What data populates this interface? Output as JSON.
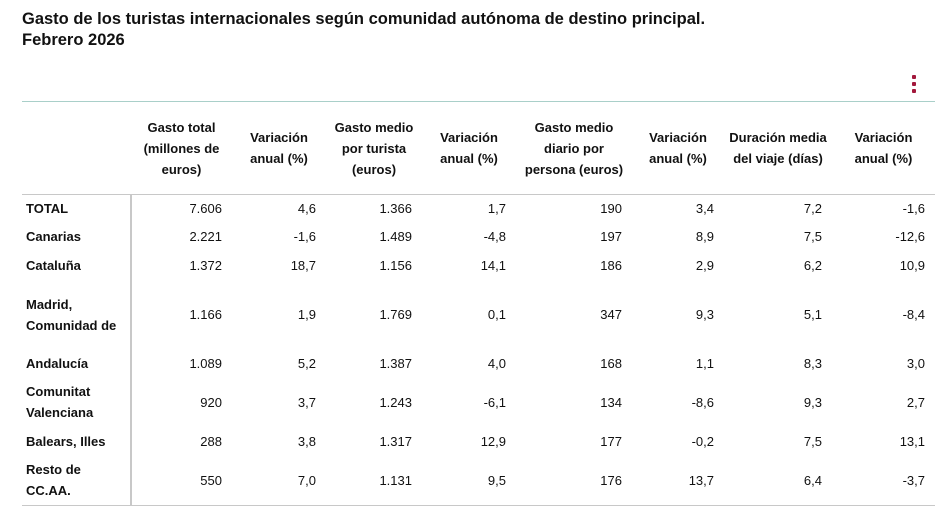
{
  "title": {
    "line1": "Gasto de los turistas internacionales según comunidad autónoma de destino principal.",
    "line2": "Febrero 2026"
  },
  "menu": {
    "icon": "kebab-menu-icon",
    "color": "#a3183c"
  },
  "table": {
    "headers": [
      "",
      "Gasto total (millones de euros)",
      "Variación anual (%)",
      "Gasto medio por turista (euros)",
      "Variación anual (%)",
      "Gasto medio diario por persona (euros)",
      "Variación anual (%)",
      "Duración media del viaje (días)",
      "Variación anual (%)"
    ],
    "rows": [
      [
        "TOTAL",
        "7.606",
        "4,6",
        "1.366",
        "1,7",
        "190",
        "3,4",
        "7,2",
        "-1,6"
      ],
      [
        "Canarias",
        "2.221",
        "-1,6",
        "1.489",
        "-4,8",
        "197",
        "8,9",
        "7,5",
        "-12,6"
      ],
      [
        "Cataluña",
        "1.372",
        "18,7",
        "1.156",
        "14,1",
        "186",
        "2,9",
        "6,2",
        "10,9"
      ],
      [
        "Madrid, Comunidad de",
        "1.166",
        "1,9",
        "1.769",
        "0,1",
        "347",
        "9,3",
        "5,1",
        "-8,4"
      ],
      [
        "Andalucía",
        "1.089",
        "5,2",
        "1.387",
        "4,0",
        "168",
        "1,1",
        "8,3",
        "3,0"
      ],
      [
        "Comunitat Valenciana",
        "920",
        "3,7",
        "1.243",
        "-6,1",
        "134",
        "-8,6",
        "9,3",
        "2,7"
      ],
      [
        "Balears, Illes",
        "288",
        "3,8",
        "1.317",
        "12,9",
        "177",
        "-0,2",
        "7,5",
        "13,1"
      ],
      [
        "Resto de CC.AA.",
        "550",
        "7,0",
        "1.131",
        "9,5",
        "176",
        "13,7",
        "6,4",
        "-3,7"
      ]
    ]
  }
}
